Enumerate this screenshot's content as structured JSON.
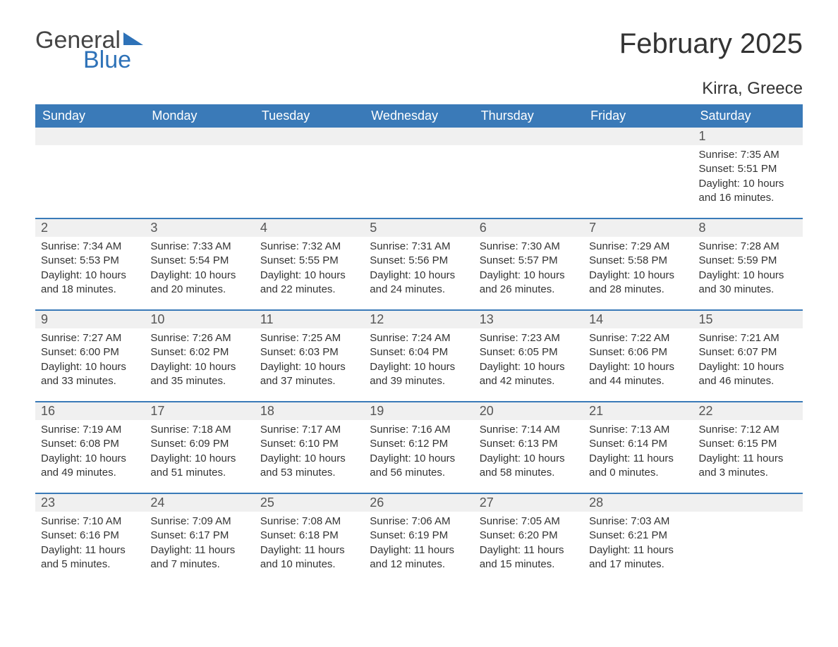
{
  "logo": {
    "general": "General",
    "blue": "Blue"
  },
  "title": "February 2025",
  "location": "Kirra, Greece",
  "colors": {
    "header_bg": "#3a7ab8",
    "header_text": "#ffffff",
    "band_bg": "#f0f0f0",
    "rule": "#3a7ab8",
    "text": "#333333",
    "logo_accent": "#2e72b8"
  },
  "day_headers": [
    "Sunday",
    "Monday",
    "Tuesday",
    "Wednesday",
    "Thursday",
    "Friday",
    "Saturday"
  ],
  "weeks": [
    [
      null,
      null,
      null,
      null,
      null,
      null,
      {
        "day": "1",
        "sunrise": "Sunrise: 7:35 AM",
        "sunset": "Sunset: 5:51 PM",
        "daylight1": "Daylight: 10 hours",
        "daylight2": "and 16 minutes."
      }
    ],
    [
      {
        "day": "2",
        "sunrise": "Sunrise: 7:34 AM",
        "sunset": "Sunset: 5:53 PM",
        "daylight1": "Daylight: 10 hours",
        "daylight2": "and 18 minutes."
      },
      {
        "day": "3",
        "sunrise": "Sunrise: 7:33 AM",
        "sunset": "Sunset: 5:54 PM",
        "daylight1": "Daylight: 10 hours",
        "daylight2": "and 20 minutes."
      },
      {
        "day": "4",
        "sunrise": "Sunrise: 7:32 AM",
        "sunset": "Sunset: 5:55 PM",
        "daylight1": "Daylight: 10 hours",
        "daylight2": "and 22 minutes."
      },
      {
        "day": "5",
        "sunrise": "Sunrise: 7:31 AM",
        "sunset": "Sunset: 5:56 PM",
        "daylight1": "Daylight: 10 hours",
        "daylight2": "and 24 minutes."
      },
      {
        "day": "6",
        "sunrise": "Sunrise: 7:30 AM",
        "sunset": "Sunset: 5:57 PM",
        "daylight1": "Daylight: 10 hours",
        "daylight2": "and 26 minutes."
      },
      {
        "day": "7",
        "sunrise": "Sunrise: 7:29 AM",
        "sunset": "Sunset: 5:58 PM",
        "daylight1": "Daylight: 10 hours",
        "daylight2": "and 28 minutes."
      },
      {
        "day": "8",
        "sunrise": "Sunrise: 7:28 AM",
        "sunset": "Sunset: 5:59 PM",
        "daylight1": "Daylight: 10 hours",
        "daylight2": "and 30 minutes."
      }
    ],
    [
      {
        "day": "9",
        "sunrise": "Sunrise: 7:27 AM",
        "sunset": "Sunset: 6:00 PM",
        "daylight1": "Daylight: 10 hours",
        "daylight2": "and 33 minutes."
      },
      {
        "day": "10",
        "sunrise": "Sunrise: 7:26 AM",
        "sunset": "Sunset: 6:02 PM",
        "daylight1": "Daylight: 10 hours",
        "daylight2": "and 35 minutes."
      },
      {
        "day": "11",
        "sunrise": "Sunrise: 7:25 AM",
        "sunset": "Sunset: 6:03 PM",
        "daylight1": "Daylight: 10 hours",
        "daylight2": "and 37 minutes."
      },
      {
        "day": "12",
        "sunrise": "Sunrise: 7:24 AM",
        "sunset": "Sunset: 6:04 PM",
        "daylight1": "Daylight: 10 hours",
        "daylight2": "and 39 minutes."
      },
      {
        "day": "13",
        "sunrise": "Sunrise: 7:23 AM",
        "sunset": "Sunset: 6:05 PM",
        "daylight1": "Daylight: 10 hours",
        "daylight2": "and 42 minutes."
      },
      {
        "day": "14",
        "sunrise": "Sunrise: 7:22 AM",
        "sunset": "Sunset: 6:06 PM",
        "daylight1": "Daylight: 10 hours",
        "daylight2": "and 44 minutes."
      },
      {
        "day": "15",
        "sunrise": "Sunrise: 7:21 AM",
        "sunset": "Sunset: 6:07 PM",
        "daylight1": "Daylight: 10 hours",
        "daylight2": "and 46 minutes."
      }
    ],
    [
      {
        "day": "16",
        "sunrise": "Sunrise: 7:19 AM",
        "sunset": "Sunset: 6:08 PM",
        "daylight1": "Daylight: 10 hours",
        "daylight2": "and 49 minutes."
      },
      {
        "day": "17",
        "sunrise": "Sunrise: 7:18 AM",
        "sunset": "Sunset: 6:09 PM",
        "daylight1": "Daylight: 10 hours",
        "daylight2": "and 51 minutes."
      },
      {
        "day": "18",
        "sunrise": "Sunrise: 7:17 AM",
        "sunset": "Sunset: 6:10 PM",
        "daylight1": "Daylight: 10 hours",
        "daylight2": "and 53 minutes."
      },
      {
        "day": "19",
        "sunrise": "Sunrise: 7:16 AM",
        "sunset": "Sunset: 6:12 PM",
        "daylight1": "Daylight: 10 hours",
        "daylight2": "and 56 minutes."
      },
      {
        "day": "20",
        "sunrise": "Sunrise: 7:14 AM",
        "sunset": "Sunset: 6:13 PM",
        "daylight1": "Daylight: 10 hours",
        "daylight2": "and 58 minutes."
      },
      {
        "day": "21",
        "sunrise": "Sunrise: 7:13 AM",
        "sunset": "Sunset: 6:14 PM",
        "daylight1": "Daylight: 11 hours",
        "daylight2": "and 0 minutes."
      },
      {
        "day": "22",
        "sunrise": "Sunrise: 7:12 AM",
        "sunset": "Sunset: 6:15 PM",
        "daylight1": "Daylight: 11 hours",
        "daylight2": "and 3 minutes."
      }
    ],
    [
      {
        "day": "23",
        "sunrise": "Sunrise: 7:10 AM",
        "sunset": "Sunset: 6:16 PM",
        "daylight1": "Daylight: 11 hours",
        "daylight2": "and 5 minutes."
      },
      {
        "day": "24",
        "sunrise": "Sunrise: 7:09 AM",
        "sunset": "Sunset: 6:17 PM",
        "daylight1": "Daylight: 11 hours",
        "daylight2": "and 7 minutes."
      },
      {
        "day": "25",
        "sunrise": "Sunrise: 7:08 AM",
        "sunset": "Sunset: 6:18 PM",
        "daylight1": "Daylight: 11 hours",
        "daylight2": "and 10 minutes."
      },
      {
        "day": "26",
        "sunrise": "Sunrise: 7:06 AM",
        "sunset": "Sunset: 6:19 PM",
        "daylight1": "Daylight: 11 hours",
        "daylight2": "and 12 minutes."
      },
      {
        "day": "27",
        "sunrise": "Sunrise: 7:05 AM",
        "sunset": "Sunset: 6:20 PM",
        "daylight1": "Daylight: 11 hours",
        "daylight2": "and 15 minutes."
      },
      {
        "day": "28",
        "sunrise": "Sunrise: 7:03 AM",
        "sunset": "Sunset: 6:21 PM",
        "daylight1": "Daylight: 11 hours",
        "daylight2": "and 17 minutes."
      },
      null
    ]
  ]
}
